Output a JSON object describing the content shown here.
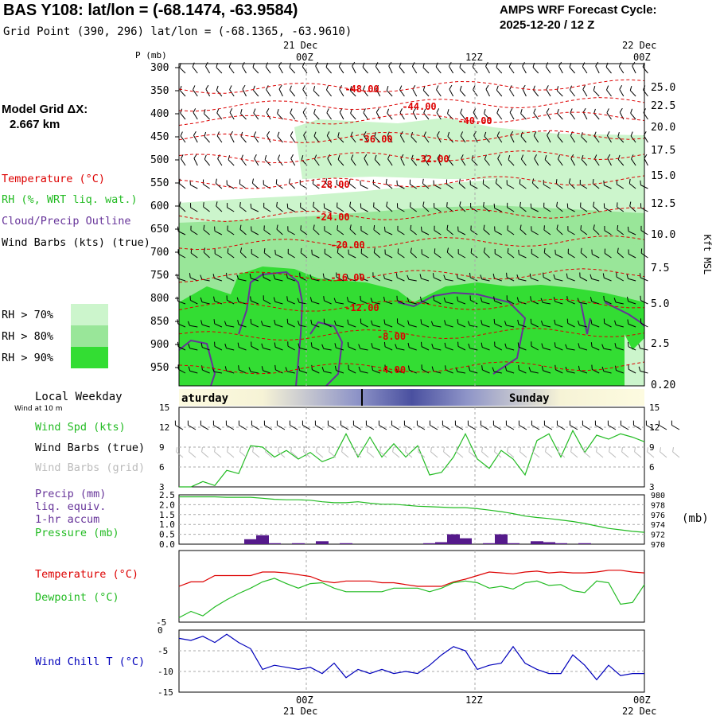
{
  "header": {
    "station_title": "BAS Y108:  lat/lon = (-68.1474, -63.9584)",
    "grid_point": "Grid Point (390, 296) lat/lon = (-68.1365, -63.9610)",
    "cycle_line1": "AMPS WRF Forecast Cycle:",
    "cycle_line2": "2025-12-20 / 12  Z"
  },
  "model_grid": {
    "label": "Model Grid ΔX:",
    "value": "2.667 km"
  },
  "legend": {
    "temperature": "Temperature (°C)",
    "rh": "RH (%, WRT liq. wat.)",
    "cloud": "Cloud/Precip Outline",
    "wind": "Wind Barbs (kts) (true)",
    "rh70": "RH > 70%",
    "rh80": "RH > 80%",
    "rh90": "RH > 90%"
  },
  "colors": {
    "temp": "#dd0000",
    "rh70": "#ccf5cc",
    "rh80": "#99e699",
    "rh90": "#33dd33",
    "cloud": "#663399",
    "precip": "#551a8b",
    "wind_spd": "#22bb22",
    "pressure": "#22bb22",
    "dewpoint": "#22bb22",
    "chill": "#0000bb",
    "grid": "#888888"
  },
  "time_axis": {
    "top_dates": [
      "21 Dec",
      "22 Dec"
    ],
    "top_hours": [
      "00Z",
      "12Z",
      "00Z"
    ],
    "bottom_hours": [
      "00Z",
      "12Z",
      "00Z"
    ],
    "bottom_dates": [
      "21 Dec",
      "22 Dec"
    ]
  },
  "weekday": {
    "title": "Local Weekday",
    "sub": "Wind at 10 m",
    "day1": "aturday",
    "day2": "Sunday"
  },
  "chart_data": [
    {
      "type": "heatmap",
      "name": "vertical cross-section",
      "y_title": "P (mb)",
      "right_title": "Kft MSL",
      "pressure_ticks": [
        "300",
        "350",
        "400",
        "450",
        "500",
        "550",
        "600",
        "650",
        "700",
        "750",
        "800",
        "850",
        "900",
        "950"
      ],
      "kft_ticks": [
        "25.0",
        "22.5",
        "20.0",
        "17.5",
        "15.0",
        "12.5",
        "10.0",
        "7.5",
        "5.0",
        "2.5",
        "0.20"
      ],
      "temp_contour_labels": [
        "-48.00",
        "-44.00",
        "-40.00",
        "-36.00",
        "-32.00",
        "-28.00",
        "-24.00",
        "-20.00",
        "-16.00",
        "-12.00",
        "-8.00",
        "-4.00"
      ],
      "temp_contour_levels": [
        -48,
        -44,
        -40,
        -36,
        -32,
        -28,
        -24,
        -20,
        -16,
        -12,
        -8,
        -4
      ]
    },
    {
      "type": "line",
      "name": "wind speed",
      "title": "Wind Spd (kts)",
      "barbs_true": "Wind Barbs (true)",
      "barbs_grid": "Wind Barbs (grid)",
      "y_ticks": [
        "15",
        "12",
        "9",
        "6",
        "3"
      ],
      "ylim": [
        3,
        15
      ],
      "values": [
        3.0,
        3.0,
        3.8,
        3.2,
        5.5,
        5.0,
        9.2,
        9.0,
        7.5,
        8.5,
        7.2,
        8.2,
        6.8,
        7.5,
        11.0,
        7.5,
        10.5,
        7.5,
        9.5,
        7.5,
        9.2,
        4.8,
        5.2,
        7.5,
        11.0,
        7.2,
        5.8,
        8.5,
        7.2,
        4.8,
        10.0,
        11.0,
        7.5,
        11.5,
        8.2,
        10.8,
        10.2,
        11.0,
        10.5,
        9.8
      ]
    },
    {
      "type": "bar",
      "name": "precip and pressure",
      "precip_title": "Precip (mm)",
      "precip_sub1": "liq. equiv.",
      "precip_sub2": "1-hr accum",
      "pressure_title": "Pressure (mb)",
      "right_unit": "(mb)",
      "left_ticks": [
        "2.5",
        "2.0",
        "1.5",
        "1.0",
        "0.5",
        "0.0"
      ],
      "right_ticks": [
        "980",
        "978",
        "976",
        "974",
        "972",
        "970"
      ],
      "ylim_precip": [
        0,
        2.5
      ],
      "ylim_pressure": [
        970,
        980
      ],
      "precip": [
        0,
        0,
        0,
        0,
        0,
        0,
        0.25,
        0.45,
        0.05,
        0,
        0.05,
        0,
        0.15,
        0,
        0.05,
        0,
        0,
        0,
        0,
        0,
        0,
        0.05,
        0.1,
        0.5,
        0.3,
        0,
        0.05,
        0.5,
        0.05,
        0,
        0.15,
        0.1,
        0.05,
        0,
        0.05,
        0,
        0,
        0,
        0,
        0
      ],
      "pressure": [
        979.6,
        979.6,
        979.6,
        979.6,
        979.5,
        979.5,
        979.5,
        979.3,
        979.1,
        979.0,
        979.0,
        978.9,
        978.6,
        978.4,
        978.4,
        978.6,
        978.3,
        978.1,
        978.1,
        977.9,
        977.7,
        977.6,
        977.5,
        977.4,
        977.4,
        977.2,
        976.9,
        976.6,
        976.2,
        975.7,
        975.4,
        975.2,
        974.9,
        974.6,
        974.2,
        973.7,
        973.2,
        972.9,
        972.6,
        972.4
      ]
    },
    {
      "type": "line",
      "name": "temperature and dewpoint",
      "temp_title": "Temperature (°C)",
      "dew_title": "Dewpoint (°C)",
      "y_ticks": [
        "-5"
      ],
      "ylim": [
        -5,
        3
      ],
      "temperature": [
        -1.0,
        -0.5,
        -0.5,
        0.2,
        0.2,
        0.2,
        0.2,
        0.6,
        0.6,
        0.5,
        0.3,
        0.1,
        -0.4,
        -0.6,
        -0.4,
        -0.4,
        -0.4,
        -0.6,
        -0.6,
        -0.8,
        -1.0,
        -1.0,
        -1.0,
        -0.5,
        -0.2,
        0.2,
        0.6,
        0.5,
        0.4,
        0.6,
        0.7,
        0.5,
        0.6,
        0.5,
        0.5,
        0.6,
        0.8,
        0.8,
        0.6,
        0.5
      ],
      "dewpoint": [
        -4.5,
        -3.8,
        -4.3,
        -3.3,
        -2.5,
        -1.8,
        -1.2,
        -0.5,
        -0.1,
        -0.7,
        -1.2,
        -0.7,
        -0.6,
        -1.2,
        -1.6,
        -1.6,
        -1.6,
        -1.6,
        -1.2,
        -1.2,
        -1.2,
        -1.6,
        -1.2,
        -0.6,
        -0.4,
        -0.6,
        -1.2,
        -1.0,
        -1.3,
        -0.6,
        -0.4,
        -0.9,
        -0.8,
        -1.5,
        -1.7,
        -0.4,
        -0.6,
        -3.0,
        -2.8,
        -0.8
      ]
    },
    {
      "type": "line",
      "name": "wind chill",
      "title": "Wind Chill T (°C)",
      "y_ticks": [
        "0",
        "-5",
        "-10",
        "-15"
      ],
      "ylim": [
        -15,
        0
      ],
      "values": [
        -2.0,
        -2.5,
        -1.5,
        -3.0,
        -1.0,
        -3.0,
        -4.5,
        -9.5,
        -8.5,
        -9.0,
        -9.5,
        -9.0,
        -10.5,
        -8.0,
        -11.5,
        -9.5,
        -10.5,
        -9.5,
        -10.5,
        -10.0,
        -10.5,
        -8.5,
        -6.0,
        -4.0,
        -5.0,
        -9.5,
        -8.5,
        -8.0,
        -4.0,
        -8.0,
        -9.5,
        -10.5,
        -10.5,
        -6.0,
        -8.5,
        -12.0,
        -8.5,
        -11.0,
        -10.5,
        -10.5
      ]
    }
  ]
}
